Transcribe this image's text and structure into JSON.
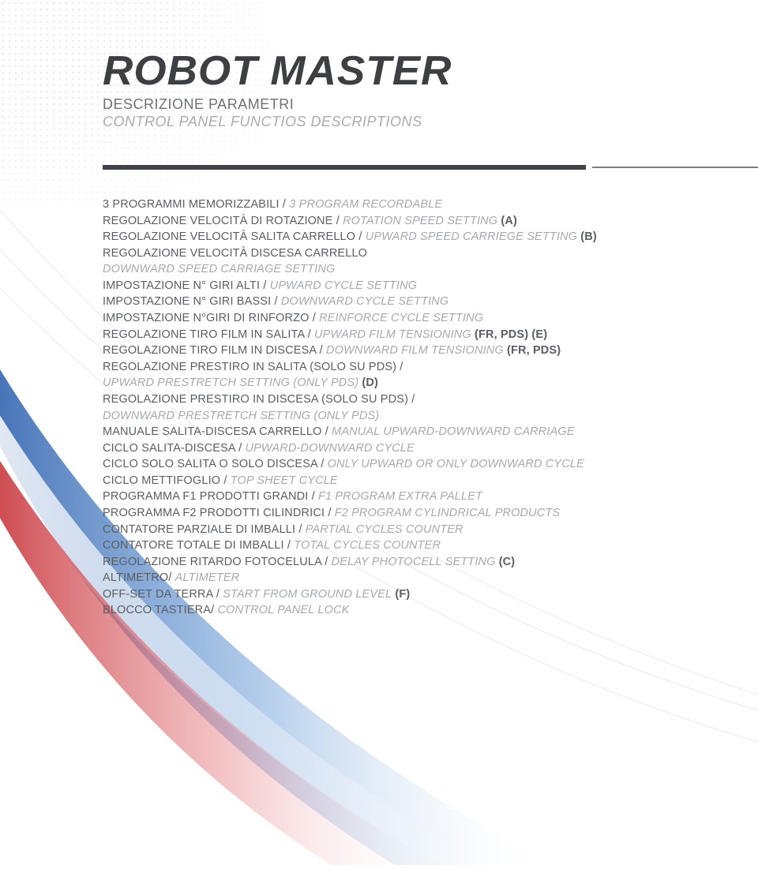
{
  "header": {
    "title": "ROBOT MASTER",
    "subtitle_it": "DESCRIZIONE PARAMETRI",
    "subtitle_en": "CONTROL PANEL FUNCTIOS DESCRIPTIONS"
  },
  "styling": {
    "title_color": "#3d3f42",
    "title_fontsize": 52,
    "subtitle_it_color": "#6e7175",
    "subtitle_en_color": "#a9acb0",
    "subtitle_fontsize": 18,
    "param_fontsize": 14.5,
    "param_it_color": "#5b5e62",
    "param_en_color": "#a6a9ad",
    "divider_thick_color": "#3f4246",
    "divider_thin_color": "#7c7f83",
    "swoosh_colors": {
      "blue": "#2a5caa",
      "red": "#c1272d",
      "grey_line": "#c9ccd0"
    },
    "dot_color": "#d0d3d6",
    "background": "#ffffff"
  },
  "params": [
    {
      "it": "3 PROGRAMMI MEMORIZZABILI",
      "en": "3 PROGRAM RECORDABLE"
    },
    {
      "it": "REGOLAZIONE VELOCITÀ DI ROTAZIONE",
      "en": "ROTATION SPEED SETTING",
      "suffix": "(A)"
    },
    {
      "it": "REGOLAZIONE VELOCITÀ SALITA CARRELLO",
      "en": "UPWARD SPEED CARRIEGE SETTING",
      "suffix": "(B)"
    },
    {
      "it": "REGOLAZIONE VELOCITÀ DISCESA CARRELLO",
      "en": ""
    },
    {
      "it": "",
      "en": "DOWNWARD SPEED CARRIAGE SETTING"
    },
    {
      "it": "IMPOSTAZIONE N° GIRI ALTI",
      "en": "UPWARD CYCLE SETTING"
    },
    {
      "it": "IMPOSTAZIONE N° GIRI BASSI",
      "en": "DOWNWARD CYCLE SETTING"
    },
    {
      "it": "IMPOSTAZIONE N°GIRI DI RINFORZO",
      "en": "REINFORCE CYCLE SETTING"
    },
    {
      "it": "REGOLAZIONE TIRO FILM IN SALITA",
      "en": "UPWARD FILM TENSIONING",
      "suffix": "(FR, PDS) (E)"
    },
    {
      "it": "REGOLAZIONE TIRO FILM IN DISCESA",
      "en": "DOWNWARD FILM TENSIONING",
      "suffix": "(FR, PDS)"
    },
    {
      "it": "REGOLAZIONE PRESTIRO IN SALITA (SOLO SU PDS) /",
      "en": ""
    },
    {
      "it": "",
      "en": "UPWARD PRESTRETCH SETTING (ONLY PDS)",
      "suffix": "(D)"
    },
    {
      "it": "REGOLAZIONE PRESTIRO IN DISCESA (SOLO SU PDS) /",
      "en": ""
    },
    {
      "it": "",
      "en": "DOWNWARD PRESTRETCH SETTING (ONLY PDS)"
    },
    {
      "it": "MANUALE SALITA-DISCESA CARRELLO",
      "en": "MANUAL UPWARD-DOWNWARD CARRIAGE"
    },
    {
      "it": "CICLO SALITA-DISCESA",
      "en": "UPWARD-DOWNWARD CYCLE"
    },
    {
      "it": "CICLO SOLO SALITA O SOLO DISCESA",
      "en": "ONLY UPWARD OR ONLY DOWNWARD CYCLE"
    },
    {
      "it": "CICLO METTIFOGLIO",
      "en": "TOP SHEET CYCLE"
    },
    {
      "it": "PROGRAMMA F1 PRODOTTI GRANDI",
      "en": "F1 PROGRAM EXTRA PALLET"
    },
    {
      "it": "PROGRAMMA F2 PRODOTTI CILINDRICI",
      "en": "F2 PROGRAM CYLINDRICAL PRODUCTS"
    },
    {
      "it": "CONTATORE PARZIALE DI IMBALLI",
      "en": "PARTIAL CYCLES COUNTER"
    },
    {
      "it": "CONTATORE TOTALE DI IMBALLI",
      "en": "TOTAL CYCLES COUNTER"
    },
    {
      "it": "REGOLAZIONE RITARDO FOTOCELULA",
      "en": "DELAY PHOTOCELL SETTING",
      "suffix": "(C)"
    },
    {
      "it": "ALTIMETRO",
      "en": "ALTIMETER",
      "sep": "/ "
    },
    {
      "it": "OFF-SET DA TERRA",
      "en": "START FROM GROUND LEVEL",
      "suffix": "(F)"
    },
    {
      "it": "BLOCCO TASTIERA",
      "en": "CONTROL PANEL LOCK",
      "sep": "/ "
    }
  ]
}
